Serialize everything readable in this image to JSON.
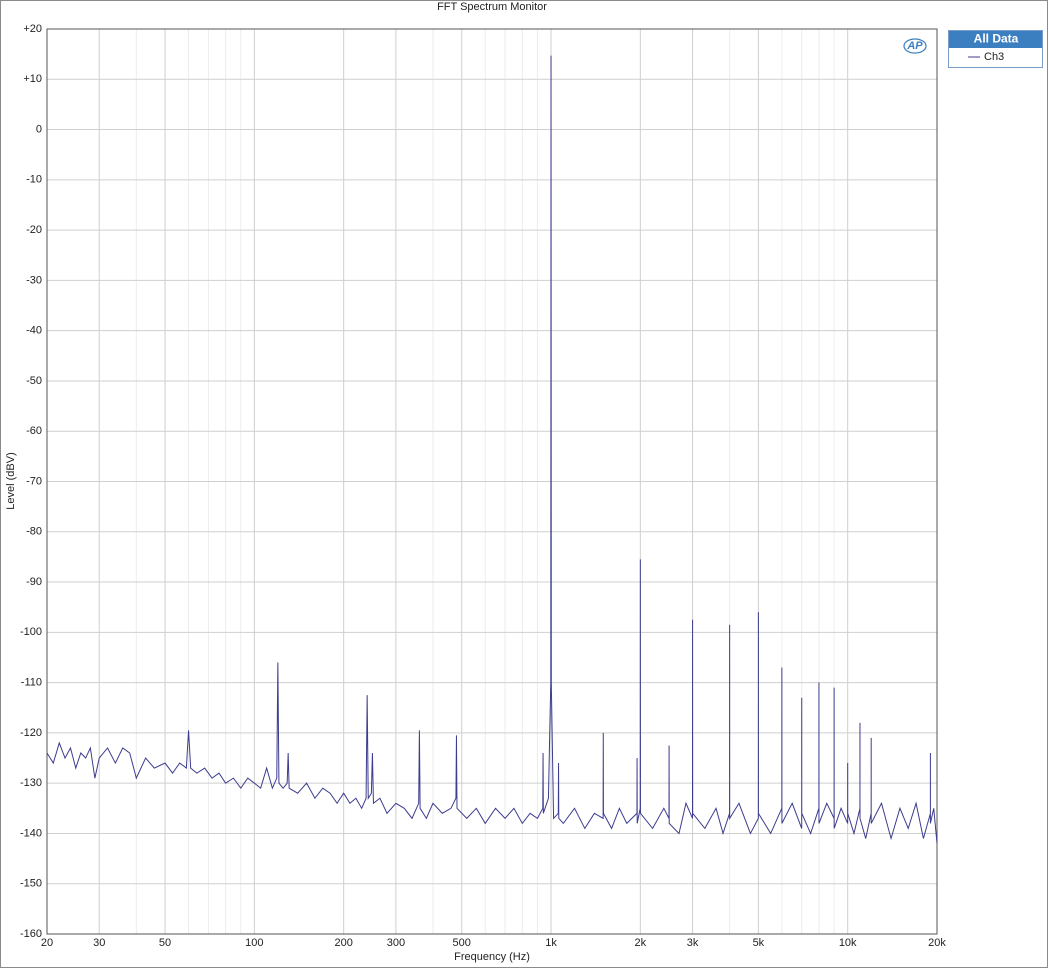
{
  "chart_data": {
    "type": "line",
    "title": "FFT Spectrum Monitor",
    "xlabel": "Frequency (Hz)",
    "ylabel": "Level (dBV)",
    "legend_title": "All Data",
    "logo": "AP",
    "xscale": "log",
    "grid": true,
    "legend": "right",
    "xlim": [
      20,
      20000
    ],
    "ylim": [
      -160,
      20
    ],
    "xticks": [
      20,
      30,
      50,
      100,
      200,
      300,
      500,
      {
        "value": 1000,
        "label": "1k"
      },
      {
        "value": 2000,
        "label": "2k"
      },
      {
        "value": 3000,
        "label": "3k"
      },
      {
        "value": 5000,
        "label": "5k"
      },
      {
        "value": 10000,
        "label": "10k"
      },
      {
        "value": 20000,
        "label": "20k"
      }
    ],
    "xminor_ticks": [
      40,
      60,
      70,
      80,
      90,
      400,
      600,
      700,
      800,
      900,
      4000,
      6000,
      7000,
      8000,
      9000
    ],
    "yticks": [
      {
        "value": 20,
        "label": "+20"
      },
      {
        "value": 10,
        "label": "+10"
      },
      0,
      -10,
      -20,
      -30,
      -40,
      -50,
      -60,
      -70,
      -80,
      -90,
      -100,
      -110,
      -120,
      -130,
      -140,
      -150,
      -160
    ],
    "x": [
      20,
      21,
      22,
      23,
      24,
      25,
      26,
      27,
      28,
      29,
      30,
      32,
      34,
      36,
      38,
      40,
      43,
      46,
      50,
      53,
      56,
      59,
      60,
      61,
      64,
      68,
      72,
      76,
      80,
      85,
      90,
      95,
      100,
      105,
      110,
      115,
      119,
      120,
      121,
      125,
      129,
      130,
      131,
      140,
      150,
      160,
      170,
      180,
      190,
      200,
      210,
      220,
      230,
      238,
      240,
      242,
      248,
      250,
      252,
      265,
      280,
      300,
      320,
      340,
      358,
      360,
      362,
      380,
      400,
      430,
      460,
      478,
      480,
      482,
      520,
      560,
      600,
      650,
      700,
      750,
      800,
      850,
      900,
      938,
      940,
      942,
      980,
      998,
      1000,
      1002,
      1020,
      1058,
      1060,
      1062,
      1100,
      1200,
      1300,
      1400,
      1498,
      1500,
      1502,
      1600,
      1700,
      1800,
      1948,
      1950,
      1952,
      1998,
      2000,
      2002,
      2200,
      2400,
      2498,
      2500,
      2502,
      2700,
      2850,
      2998,
      3000,
      3002,
      3300,
      3600,
      3800,
      3998,
      4000,
      4002,
      4300,
      4700,
      4998,
      5000,
      5002,
      5500,
      5998,
      6000,
      6002,
      6500,
      6998,
      7000,
      7002,
      7500,
      7998,
      8000,
      8002,
      8500,
      8998,
      9000,
      9002,
      9500,
      9998,
      10000,
      10002,
      10500,
      10998,
      11000,
      11002,
      11500,
      11998,
      12000,
      12002,
      13000,
      14000,
      15000,
      16000,
      17000,
      18000,
      18998,
      19000,
      19002,
      19500,
      20000
    ],
    "series": [
      {
        "name": "Ch3",
        "color": "#3d3d8f",
        "values": [
          -124,
          -126,
          -122,
          -125,
          -123,
          -127,
          -124,
          -125,
          -123,
          -129,
          -125,
          -123,
          -126,
          -123,
          -124,
          -129,
          -125,
          -127,
          -126,
          -128,
          -126,
          -127,
          -119.5,
          -127,
          -128,
          -127,
          -129,
          -128,
          -130,
          -129,
          -131,
          -129,
          -130,
          -131,
          -127,
          -131,
          -129,
          -106,
          -130,
          -131,
          -130,
          -124,
          -131,
          -132,
          -130,
          -133,
          -131,
          -132,
          -134,
          -132,
          -134,
          -133,
          -135,
          -133,
          -112.5,
          -133,
          -132,
          -124,
          -134,
          -133,
          -136,
          -134,
          -135,
          -137,
          -134,
          -119.5,
          -135,
          -137,
          -134,
          -136,
          -135,
          -133,
          -120.5,
          -135,
          -137,
          -135,
          -138,
          -135,
          -137,
          -135,
          -138,
          -136,
          -137,
          -135,
          -124,
          -136,
          -133,
          -110,
          14.7,
          -110,
          -137,
          -136,
          -126,
          -137,
          -138,
          -135,
          -139,
          -136,
          -137,
          -120,
          -136,
          -139,
          -135,
          -138,
          -136,
          -125,
          -138,
          -135,
          -85.5,
          -136,
          -139,
          -135,
          -137,
          -122.5,
          -138,
          -140,
          -134,
          -137,
          -97.5,
          -136,
          -139,
          -135,
          -140,
          -136,
          -98.5,
          -137,
          -134,
          -140,
          -137,
          -96,
          -136,
          -140,
          -135,
          -107,
          -138,
          -134,
          -139,
          -113,
          -136,
          -140,
          -135,
          -110,
          -138,
          -134,
          -137,
          -111,
          -139,
          -135,
          -138,
          -126,
          -136,
          -140,
          -135,
          -118,
          -137,
          -141,
          -136,
          -121,
          -138,
          -134,
          -141,
          -135,
          -139,
          -134,
          -141,
          -136,
          -124,
          -138,
          -135,
          -142
        ]
      }
    ]
  }
}
